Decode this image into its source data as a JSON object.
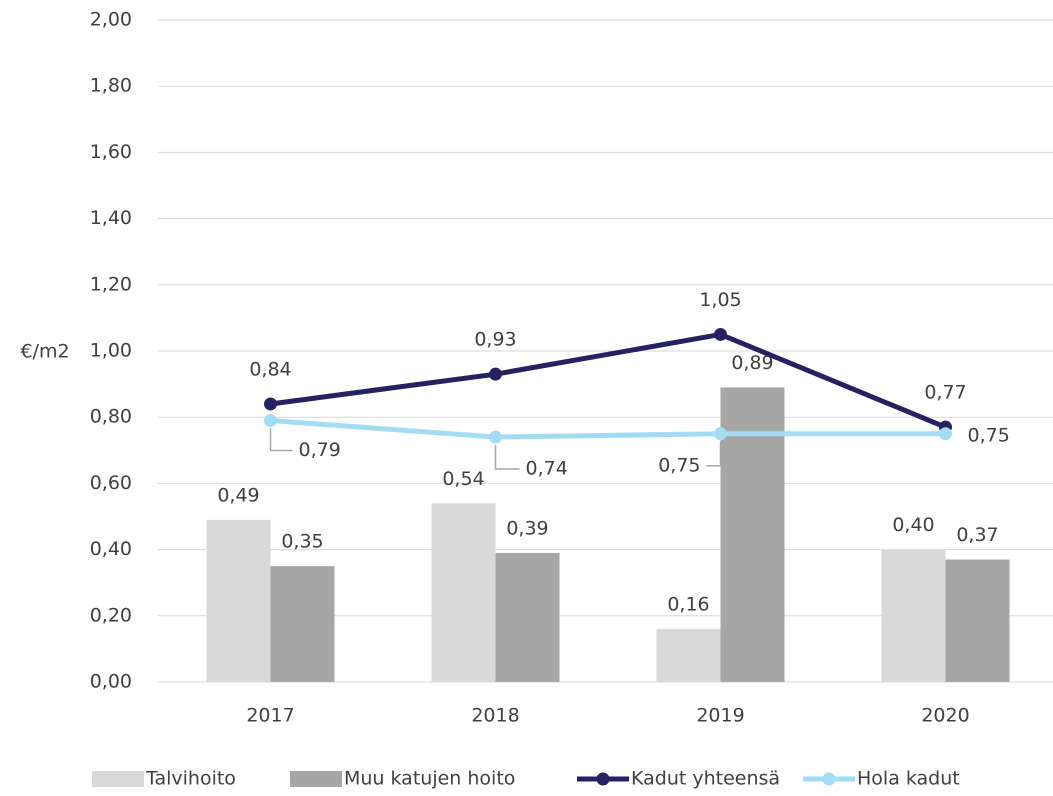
{
  "chart_data": {
    "type": "bar",
    "y_label": "€/m2",
    "categories": [
      "2017",
      "2018",
      "2019",
      "2020"
    ],
    "series": [
      {
        "name": "Talvihoito",
        "type": "bar",
        "color": "#d9d9d9",
        "values": [
          0.49,
          0.54,
          0.16,
          0.4
        ],
        "value_labels": [
          "0,49",
          "0,54",
          "0,16",
          "0,40"
        ]
      },
      {
        "name": "Muu katujen hoito",
        "type": "bar",
        "color": "#a6a6a6",
        "values": [
          0.35,
          0.39,
          0.89,
          0.37
        ],
        "value_labels": [
          "0,35",
          "0,39",
          "0,89",
          "0,37"
        ]
      },
      {
        "name": "Kadut yhteensä",
        "type": "line",
        "color": "#262262",
        "values": [
          0.84,
          0.93,
          1.05,
          0.77
        ],
        "value_labels": [
          "0,84",
          "0,93",
          "1,05",
          "0,77"
        ]
      },
      {
        "name": "Hola kadut",
        "type": "line",
        "color": "#a5dcf5",
        "values": [
          0.79,
          0.74,
          0.75,
          0.75
        ],
        "value_labels": [
          "0,79",
          "0,74",
          "0,75",
          "0,75"
        ]
      }
    ],
    "ylim": [
      0,
      2
    ],
    "yticks": [
      {
        "value": 0,
        "label": "0,00"
      },
      {
        "value": 0.2,
        "label": "0,20"
      },
      {
        "value": 0.4,
        "label": "0,40"
      },
      {
        "value": 0.6,
        "label": "0,60"
      },
      {
        "value": 0.8,
        "label": "0,80"
      },
      {
        "value": 1.0,
        "label": "1,00"
      },
      {
        "value": 1.2,
        "label": "1,20"
      },
      {
        "value": 1.4,
        "label": "1,40"
      },
      {
        "value": 1.6,
        "label": "1,60"
      },
      {
        "value": 1.8,
        "label": "1,80"
      },
      {
        "value": 2.0,
        "label": "2,00"
      }
    ],
    "grid": true,
    "legend": "bottom"
  }
}
